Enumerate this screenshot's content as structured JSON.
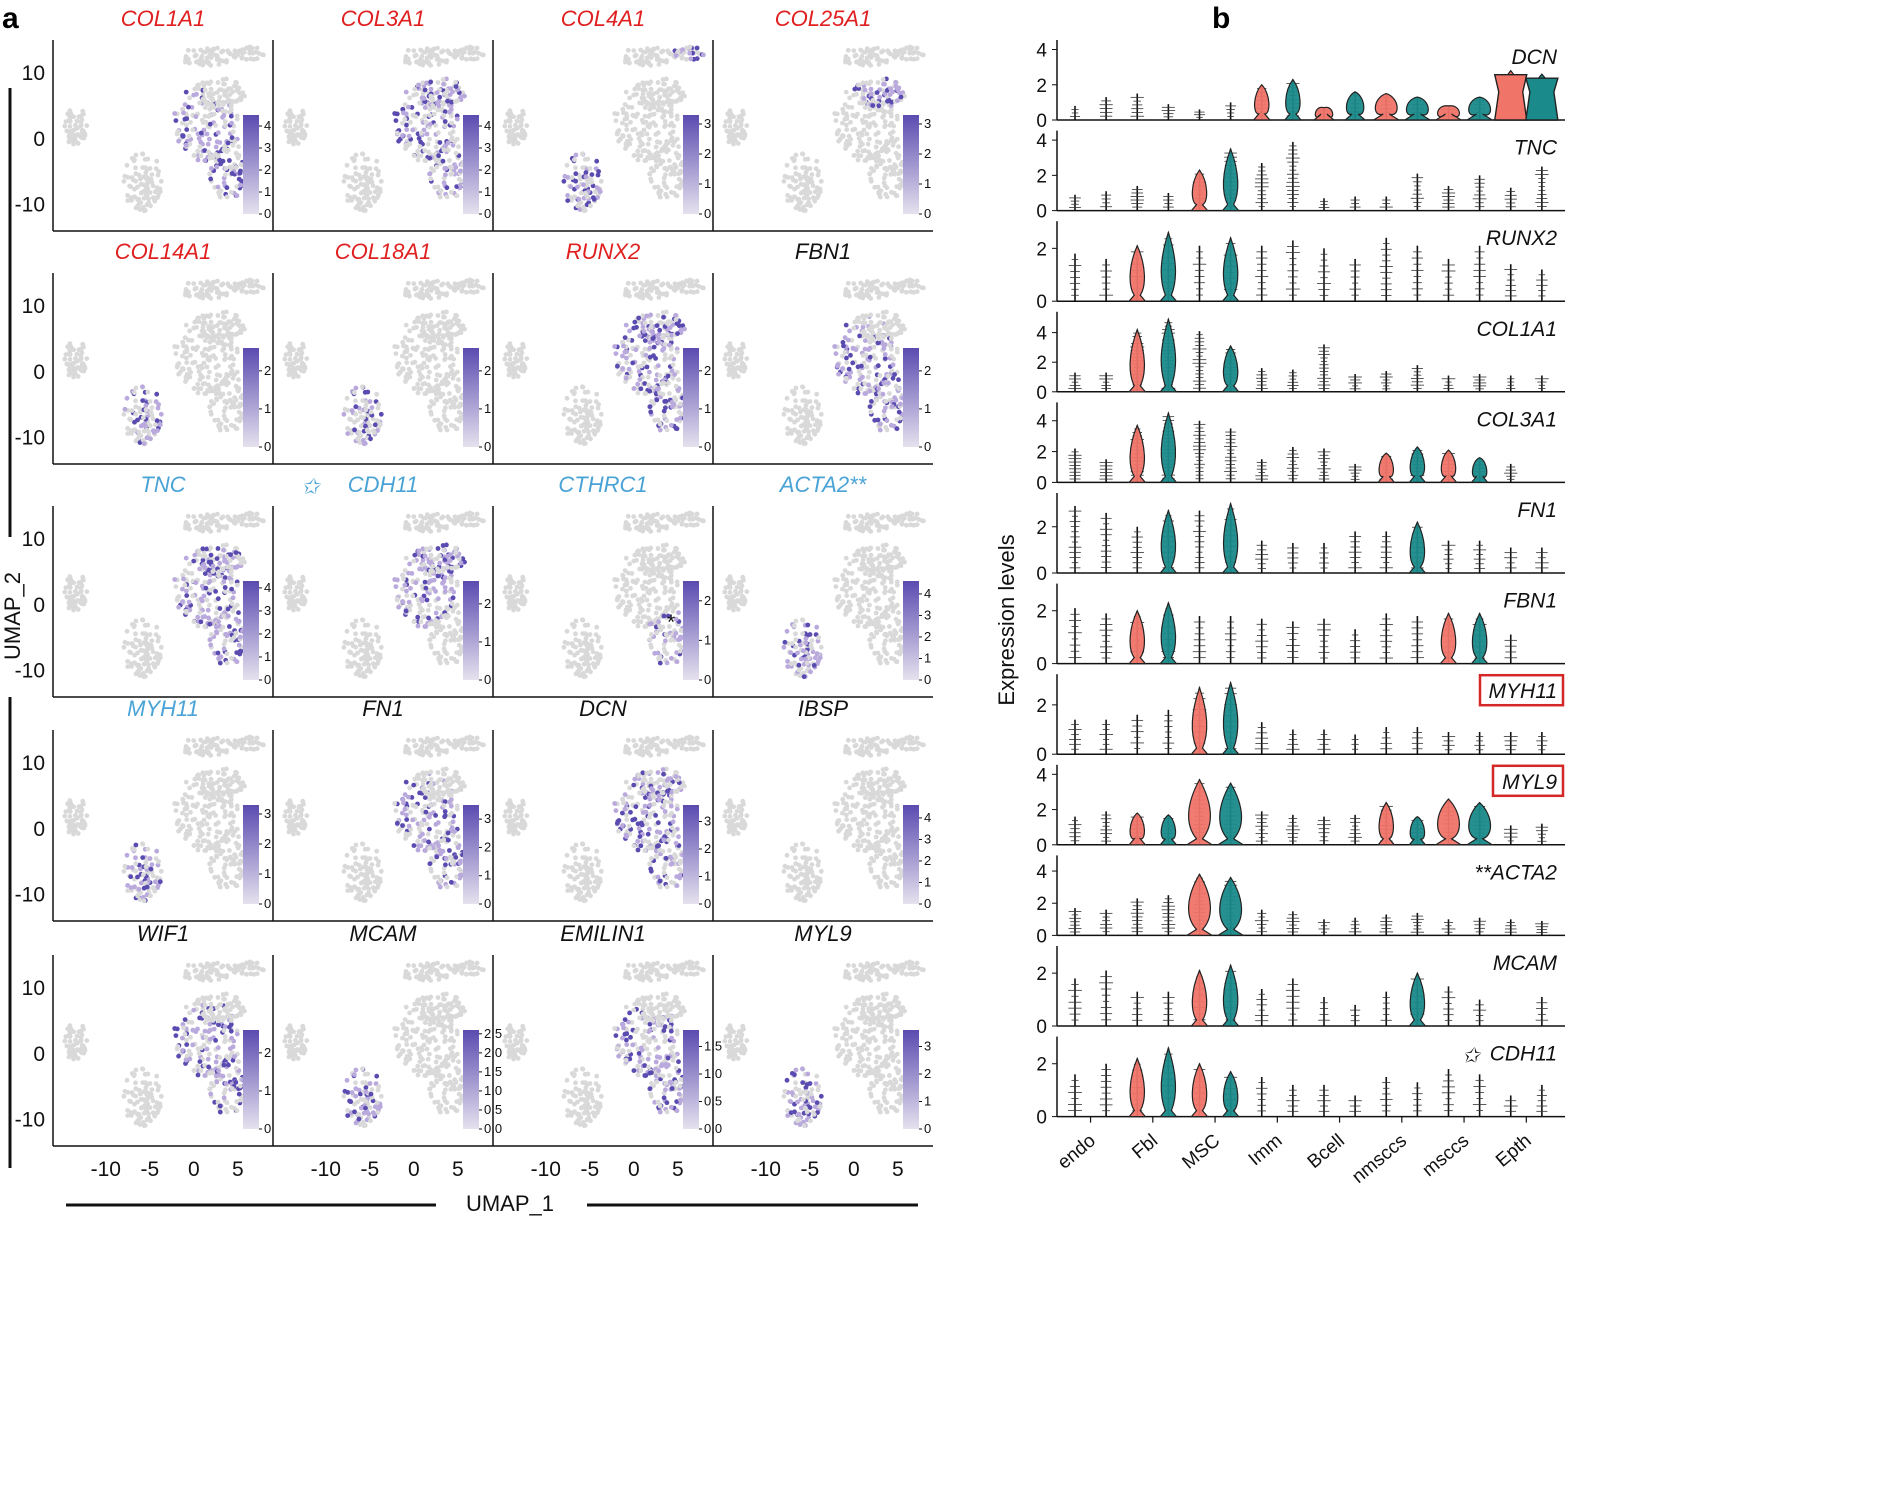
{
  "panels": {
    "a": "a",
    "b": "b"
  },
  "colors": {
    "red": "#e02020",
    "blue": "#4aa3d6",
    "black": "#111111",
    "purple": "#5a4bb0",
    "grey": "#d9d9d9",
    "fbl_orange": "#f07468",
    "msc_teal": "#1a8a8a"
  },
  "chart_data": [
    {
      "type": "scatter",
      "subtype": "umap-feature-plot-grid",
      "xlabel": "UMAP_1",
      "ylabel": "UMAP_2",
      "x_ticks": [
        "-10",
        "-5",
        "0",
        "5"
      ],
      "y_ticks": [
        "10",
        "0",
        "-10"
      ],
      "genes": [
        {
          "name": "COL1A1",
          "color": "red",
          "cb_ticks": [
            "4",
            "3",
            "2",
            "1",
            "0"
          ],
          "cb_max": 4.5
        },
        {
          "name": "COL3A1",
          "color": "red",
          "cb_ticks": [
            "4",
            "3",
            "2",
            "1",
            "0"
          ],
          "cb_max": 4.5
        },
        {
          "name": "COL4A1",
          "color": "red",
          "cb_ticks": [
            "3",
            "2",
            "1",
            "0"
          ],
          "cb_max": 3.3
        },
        {
          "name": "COL25A1",
          "color": "red",
          "cb_ticks": [
            "3",
            "2",
            "1",
            "0"
          ],
          "cb_max": 3.3
        },
        {
          "name": "COL14A1",
          "color": "red",
          "cb_ticks": [
            "2",
            "1",
            "0"
          ],
          "cb_max": 2.6
        },
        {
          "name": "COL18A1",
          "color": "red",
          "cb_ticks": [
            "2",
            "1",
            "0"
          ],
          "cb_max": 2.6
        },
        {
          "name": "RUNX2",
          "color": "red",
          "cb_ticks": [
            "2",
            "1",
            "0"
          ],
          "cb_max": 2.6
        },
        {
          "name": "FBN1",
          "color": "black",
          "cb_ticks": [
            "2",
            "1",
            "0"
          ],
          "cb_max": 2.6
        },
        {
          "name": "TNC",
          "color": "blue",
          "cb_ticks": [
            "4",
            "3",
            "2",
            "1",
            "0"
          ],
          "cb_max": 4.3
        },
        {
          "name": "CDH11",
          "color": "blue",
          "cb_ticks": [
            "2",
            "1",
            "0"
          ],
          "cb_max": 2.6,
          "marker": "star"
        },
        {
          "name": "CTHRC1",
          "color": "blue",
          "cb_ticks": [
            "2",
            "1",
            "0"
          ],
          "cb_max": 2.5,
          "annotation": "*"
        },
        {
          "name": "ACTA2**",
          "color": "blue",
          "cb_ticks": [
            "4",
            "3",
            "2",
            "1",
            "0"
          ],
          "cb_max": 4.6
        },
        {
          "name": "MYH11",
          "color": "blue",
          "cb_ticks": [
            "3",
            "2",
            "1",
            "0"
          ],
          "cb_max": 3.3
        },
        {
          "name": "FN1",
          "color": "black",
          "cb_ticks": [
            "3",
            "2",
            "1",
            "0"
          ],
          "cb_max": 3.5
        },
        {
          "name": "DCN",
          "color": "black",
          "cb_ticks": [
            "3",
            "2",
            "1",
            "0"
          ],
          "cb_max": 3.6
        },
        {
          "name": "IBSP",
          "color": "black",
          "cb_ticks": [
            "4",
            "3",
            "2",
            "1",
            "0"
          ],
          "cb_max": 4.6
        },
        {
          "name": "WIF1",
          "color": "black",
          "cb_ticks": [
            "2",
            "1",
            "0"
          ],
          "cb_max": 2.6
        },
        {
          "name": "MCAM",
          "color": "black",
          "cb_ticks": [
            "2.5",
            "2.0",
            "1.5",
            "1.0",
            "0.5",
            "0.0"
          ],
          "cb_max": 2.6
        },
        {
          "name": "EMILIN1",
          "color": "black",
          "cb_ticks": [
            "1.5",
            "1.0",
            "0.5",
            "0.0"
          ],
          "cb_max": 1.8
        },
        {
          "name": "MYL9",
          "color": "black",
          "cb_ticks": [
            "3",
            "2",
            "1",
            "0"
          ],
          "cb_max": 3.6
        }
      ]
    },
    {
      "type": "violin",
      "ylabel": "Expression levels",
      "categories": [
        "endo",
        "Fbl",
        "MSC",
        "Imm",
        "Bcell",
        "nmsccs",
        "msccs",
        "Epth"
      ],
      "groups_per_category": 2,
      "genes": [
        {
          "name": "DCN",
          "yticks": [
            "4",
            "2",
            "0"
          ],
          "ymax": 4.2,
          "violins": [
            [
              1,
              0.8
            ],
            [
              1,
              1.3
            ],
            [
              1,
              1.5
            ],
            [
              1,
              0.9
            ],
            [
              1,
              0.6
            ],
            [
              1,
              1.0
            ],
            [
              2,
              2.0
            ],
            [
              2,
              2.3
            ],
            [
              3,
              0.7
            ],
            [
              3,
              1.6
            ],
            [
              4,
              1.5
            ],
            [
              5,
              1.3
            ],
            [
              6,
              0.8
            ],
            [
              7,
              1.3
            ],
            [
              14,
              2.8
            ],
            [
              15,
              2.6
            ]
          ],
          "box": [
            14,
            15
          ]
        },
        {
          "name": "TNC",
          "yticks": [
            "4",
            "2",
            "0"
          ],
          "ymax": 4.2,
          "violins": [
            [
              1,
              0.9
            ],
            [
              1,
              1.1
            ],
            [
              1,
              1.4
            ],
            [
              1,
              1.0
            ],
            [
              2,
              2.3
            ],
            [
              2,
              3.5
            ],
            [
              1,
              2.7
            ],
            [
              1,
              3.9
            ],
            [
              1,
              0.7
            ],
            [
              1,
              0.8
            ],
            [
              1,
              0.8
            ],
            [
              1,
              2.1
            ],
            [
              1,
              1.4
            ],
            [
              1,
              2.0
            ],
            [
              1,
              1.3
            ],
            [
              1,
              2.5
            ]
          ]
        },
        {
          "name": "RUNX2",
          "yticks": [
            "2",
            "0"
          ],
          "ymax": 2.8,
          "violins": [
            [
              1,
              1.8
            ],
            [
              1,
              1.6
            ],
            [
              2,
              2.1
            ],
            [
              2,
              2.6
            ],
            [
              1,
              2.1
            ],
            [
              2,
              2.4
            ],
            [
              1,
              2.1
            ],
            [
              1,
              2.3
            ],
            [
              1,
              2.0
            ],
            [
              1,
              1.6
            ],
            [
              1,
              2.4
            ],
            [
              1,
              2.1
            ],
            [
              1,
              1.6
            ],
            [
              1,
              2.1
            ],
            [
              1,
              1.4
            ],
            [
              1,
              1.2
            ]
          ]
        },
        {
          "name": "COL1A1",
          "yticks": [
            "4",
            "2",
            "0"
          ],
          "ymax": 5.0,
          "violins": [
            [
              1,
              1.3
            ],
            [
              1,
              1.3
            ],
            [
              2,
              4.2
            ],
            [
              2,
              4.9
            ],
            [
              1,
              4.1
            ],
            [
              2,
              3.1
            ],
            [
              1,
              1.6
            ],
            [
              1,
              1.5
            ],
            [
              1,
              3.2
            ],
            [
              1,
              1.2
            ],
            [
              1,
              1.4
            ],
            [
              1,
              1.8
            ],
            [
              1,
              1.1
            ],
            [
              1,
              1.2
            ],
            [
              1,
              1.1
            ],
            [
              1,
              1.1
            ]
          ]
        },
        {
          "name": "COL3A1",
          "yticks": [
            "4",
            "2",
            "0"
          ],
          "ymax": 4.8,
          "violins": [
            [
              1,
              2.2
            ],
            [
              1,
              1.5
            ],
            [
              2,
              3.7
            ],
            [
              2,
              4.5
            ],
            [
              1,
              4.0
            ],
            [
              1,
              3.5
            ],
            [
              1,
              1.5
            ],
            [
              1,
              2.3
            ],
            [
              1,
              2.2
            ],
            [
              1,
              1.2
            ],
            [
              2,
              1.9
            ],
            [
              2,
              2.3
            ],
            [
              2,
              2.1
            ],
            [
              2,
              1.6
            ],
            [
              1,
              1.2
            ],
            [
              0,
              0.0
            ]
          ]
        },
        {
          "name": "FN1",
          "yticks": [
            "2",
            "0"
          ],
          "ymax": 3.2,
          "violins": [
            [
              1,
              2.9
            ],
            [
              1,
              2.6
            ],
            [
              1,
              2.0
            ],
            [
              2,
              2.7
            ],
            [
              1,
              2.7
            ],
            [
              2,
              3.0
            ],
            [
              1,
              1.4
            ],
            [
              1,
              1.3
            ],
            [
              1,
              1.3
            ],
            [
              1,
              1.8
            ],
            [
              1,
              1.8
            ],
            [
              2,
              2.2
            ],
            [
              1,
              1.4
            ],
            [
              1,
              1.4
            ],
            [
              1,
              1.1
            ],
            [
              1,
              1.1
            ]
          ]
        },
        {
          "name": "FBN1",
          "yticks": [
            "2",
            "0"
          ],
          "ymax": 2.8,
          "violins": [
            [
              1,
              2.1
            ],
            [
              1,
              1.9
            ],
            [
              2,
              2.0
            ],
            [
              2,
              2.3
            ],
            [
              1,
              1.8
            ],
            [
              1,
              1.8
            ],
            [
              1,
              1.7
            ],
            [
              1,
              1.6
            ],
            [
              1,
              1.7
            ],
            [
              1,
              1.3
            ],
            [
              1,
              1.9
            ],
            [
              1,
              1.8
            ],
            [
              2,
              1.9
            ],
            [
              2,
              1.9
            ],
            [
              1,
              1.1
            ],
            [
              0,
              0.0
            ]
          ]
        },
        {
          "name": "MYH11",
          "yticks": [
            "2",
            "0"
          ],
          "ymax": 3.0,
          "violins": [
            [
              1,
              1.4
            ],
            [
              1,
              1.4
            ],
            [
              1,
              1.6
            ],
            [
              1,
              1.8
            ],
            [
              2,
              2.7
            ],
            [
              2,
              2.9
            ],
            [
              1,
              1.3
            ],
            [
              1,
              1.0
            ],
            [
              1,
              1.0
            ],
            [
              1,
              0.8
            ],
            [
              1,
              1.1
            ],
            [
              1,
              1.1
            ],
            [
              1,
              0.9
            ],
            [
              1,
              0.9
            ],
            [
              1,
              0.9
            ],
            [
              1,
              0.9
            ]
          ],
          "boxed": true
        },
        {
          "name": "MYL9",
          "yticks": [
            "4",
            "2",
            "0"
          ],
          "ymax": 4.2,
          "violins": [
            [
              1,
              1.6
            ],
            [
              1,
              1.9
            ],
            [
              2,
              1.8
            ],
            [
              2,
              1.7
            ],
            [
              4,
              3.7
            ],
            [
              4,
              3.5
            ],
            [
              1,
              1.9
            ],
            [
              1,
              1.7
            ],
            [
              1,
              1.6
            ],
            [
              1,
              1.7
            ],
            [
              2,
              2.4
            ],
            [
              2,
              1.6
            ],
            [
              4,
              2.6
            ],
            [
              4,
              2.4
            ],
            [
              1,
              1.1
            ],
            [
              1,
              1.2
            ]
          ],
          "boxed": true
        },
        {
          "name": "**ACTA2",
          "yticks": [
            "4",
            "2",
            "0"
          ],
          "ymax": 4.6,
          "violins": [
            [
              1,
              1.7
            ],
            [
              1,
              1.6
            ],
            [
              1,
              2.3
            ],
            [
              1,
              2.5
            ],
            [
              4,
              3.8
            ],
            [
              4,
              3.6
            ],
            [
              1,
              1.6
            ],
            [
              1,
              1.5
            ],
            [
              1,
              1.0
            ],
            [
              1,
              1.1
            ],
            [
              1,
              1.3
            ],
            [
              1,
              1.4
            ],
            [
              1,
              1.0
            ],
            [
              1,
              1.1
            ],
            [
              1,
              1.0
            ],
            [
              1,
              0.9
            ]
          ]
        },
        {
          "name": "MCAM",
          "yticks": [
            "2",
            "0"
          ],
          "ymax": 2.8,
          "violins": [
            [
              1,
              1.8
            ],
            [
              1,
              2.1
            ],
            [
              1,
              1.3
            ],
            [
              1,
              1.3
            ],
            [
              2,
              2.1
            ],
            [
              2,
              2.3
            ],
            [
              1,
              1.4
            ],
            [
              1,
              1.8
            ],
            [
              1,
              1.1
            ],
            [
              1,
              0.8
            ],
            [
              1,
              1.3
            ],
            [
              2,
              2.0
            ],
            [
              1,
              1.5
            ],
            [
              1,
              1.0
            ],
            [
              0,
              0.0
            ],
            [
              1,
              1.1
            ]
          ]
        },
        {
          "name": "CDH11",
          "yticks": [
            "2",
            "0"
          ],
          "ymax": 2.8,
          "violins": [
            [
              1,
              1.6
            ],
            [
              1,
              2.0
            ],
            [
              2,
              2.2
            ],
            [
              2,
              2.6
            ],
            [
              2,
              2.0
            ],
            [
              2,
              1.7
            ],
            [
              1,
              1.5
            ],
            [
              1,
              1.2
            ],
            [
              1,
              1.2
            ],
            [
              1,
              0.8
            ],
            [
              1,
              1.5
            ],
            [
              1,
              1.3
            ],
            [
              1,
              1.8
            ],
            [
              1,
              1.6
            ],
            [
              1,
              0.8
            ],
            [
              1,
              1.2
            ]
          ],
          "marker": "star"
        }
      ]
    }
  ]
}
